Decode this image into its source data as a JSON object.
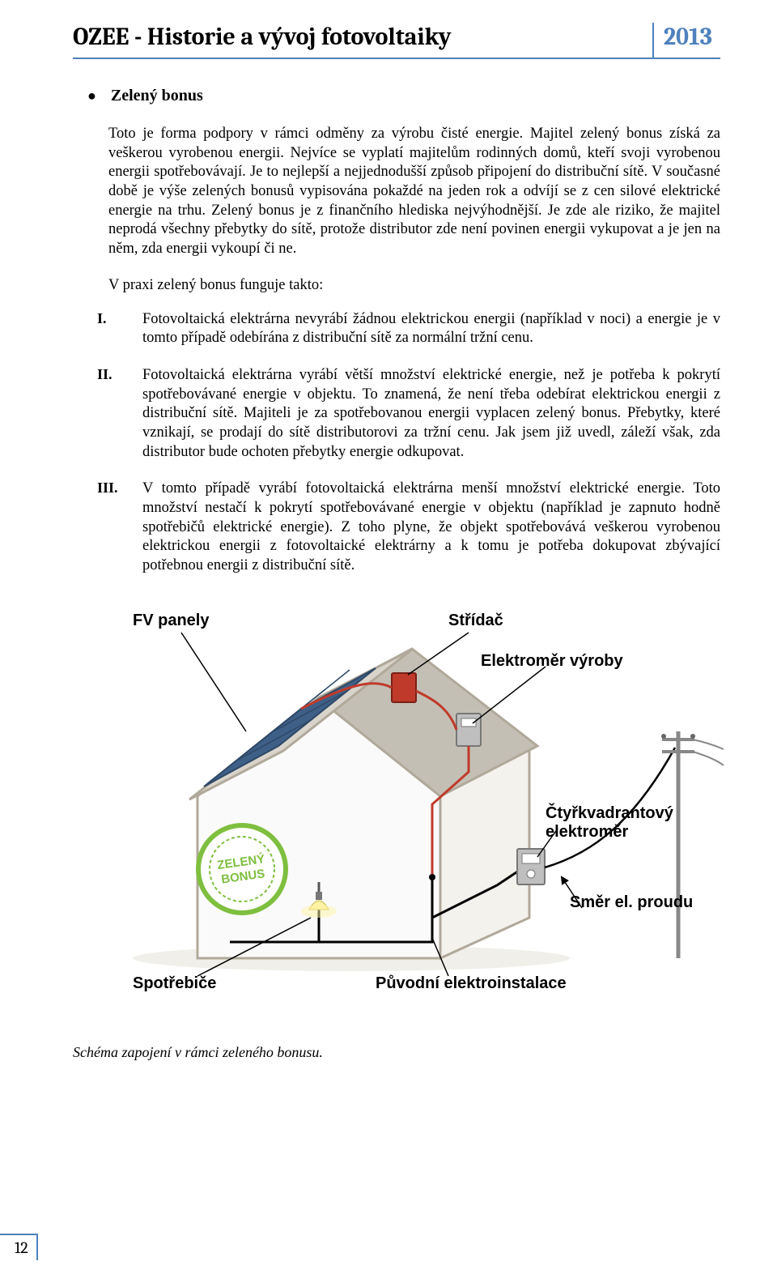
{
  "header": {
    "title": "OZEE - Historie a vývoj fotovoltaiky",
    "year": "2013"
  },
  "section_heading": "Zelený bonus",
  "main_paragraph": "Toto je forma podpory v rámci odměny za výrobu čisté energie. Majitel zelený bonus získá za veškerou vyrobenou energii. Nejvíce se vyplatí majitelům rodinných domů, kteří svoji vyrobenou energii spotřebovávají. Je to nejlepší a nejjednodušší způsob připojení do distribuční sítě. V současné době je výše zelených bonusů vypisována pokaždé na jeden rok a odvíjí se z cen silové elektrické energie na trhu. Zelený bonus je z finančního hlediska nejvýhodnější. Je zde ale riziko, že majitel neprodá všechny přebytky do sítě, protože distributor zde není povinen energii vykupovat a je jen na něm, zda energii vykoupí či ne.",
  "list_intro": "V praxi zelený bonus funguje takto:",
  "list_items": [
    {
      "num": "I.",
      "text": "Fotovoltaická elektrárna nevyrábí žádnou elektrickou energii (například v noci) a energie je v tomto případě odebírána z distribuční sítě za normální tržní cenu."
    },
    {
      "num": "II.",
      "text": "Fotovoltaická elektrárna vyrábí větší množství elektrické energie, než je potřeba k pokrytí spotřebovávané energie v objektu. To znamená, že není třeba odebírat elektrickou energii z distribuční sítě. Majiteli je za spotřebovanou energii vyplacen zelený bonus. Přebytky, které vznikají, se prodají do sítě distributorovi za tržní cenu. Jak jsem již uvedl, záleží však, zda distributor bude ochoten přebytky energie odkupovat."
    },
    {
      "num": "III.",
      "text": "V tomto případě vyrábí fotovoltaická elektrárna menší množství elektrické energie. Toto množství nestačí k pokrytí spotřebovávané energie v objektu (například je zapnuto hodně spotřebičů elektrické energie). Z toho plyne, že objekt spotřebovává veškerou vyrobenou elektrickou energii z fotovoltaické elektrárny a k tomu je potřeba dokupovat zbývající potřebnou energii z distribuční sítě."
    }
  ],
  "diagram": {
    "labels": {
      "fv_panely": "FV panely",
      "stridac": "Střídač",
      "elektromer_vyroby": "Elektroměr výroby",
      "ctyrkvadrantovy": "Čtyřkvadrantový\nelektroměr",
      "smer_el_proudu": "Směr el. proudu",
      "puvodni": "Původní elektroinstalace",
      "spotrebice": "Spotřebiče",
      "zeleny_bonus": "ZELENÝ\nBONUS"
    },
    "colors": {
      "house_outline": "#b0a99a",
      "house_fill": "#fafafa",
      "roof_front": "#d9d4cb",
      "roof_side": "#c4bfb4",
      "panel_frame": "#3e5f86",
      "panel_cell": "#5c7ea7",
      "stridac_fill": "#c03a2b",
      "elektromer_fill": "#bfbfbf",
      "wire_red": "#c03a2b",
      "wire_black": "#000000",
      "badge_outer": "#7fbf3f",
      "badge_text": "#7fbf3f",
      "lamp_glow": "#fff3a6",
      "pole_line": "#888888"
    }
  },
  "caption": "Schéma zapojení v rámci zeleného bonusu.",
  "page_number": "12"
}
